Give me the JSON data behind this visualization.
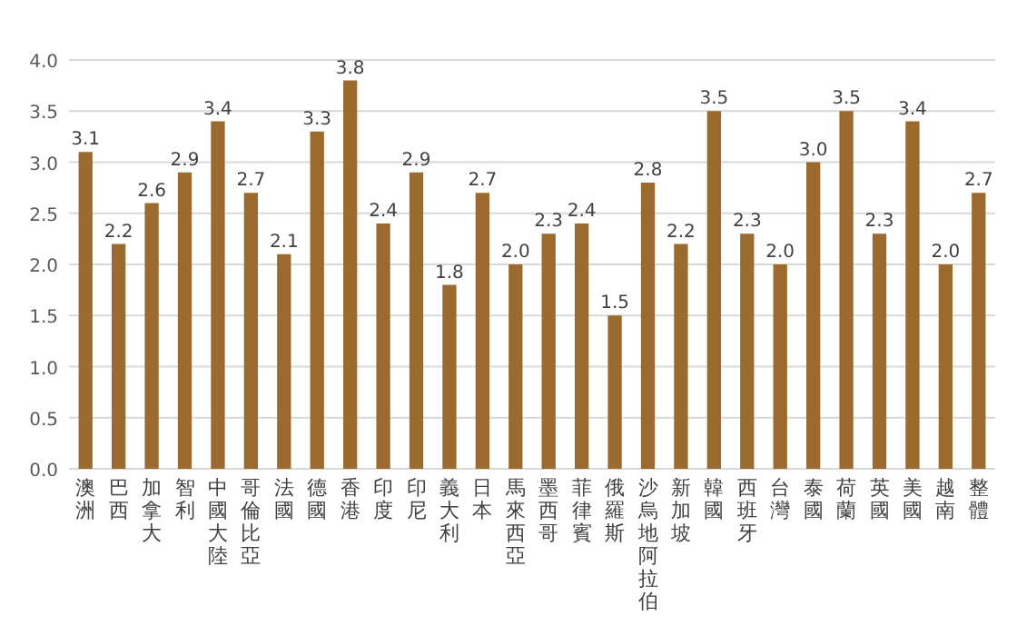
{
  "chart_data": {
    "type": "bar",
    "categories": [
      "澳洲",
      "巴西",
      "加拿大",
      "智利",
      "中國大陸",
      "哥倫比亞",
      "法國",
      "德國",
      "香港",
      "印度",
      "印尼",
      "義大利",
      "日本",
      "馬來西亞",
      "墨西哥",
      "菲律賓",
      "俄羅斯",
      "沙烏地阿拉伯",
      "新加坡",
      "韓國",
      "西班牙",
      "台灣",
      "泰國",
      "荷蘭",
      "英國",
      "美國",
      "越南",
      "整體"
    ],
    "values": [
      3.1,
      2.2,
      2.6,
      2.9,
      3.4,
      2.7,
      2.1,
      3.3,
      3.8,
      2.4,
      2.9,
      1.8,
      2.7,
      2.0,
      2.3,
      2.4,
      1.5,
      2.8,
      2.2,
      3.5,
      2.3,
      2.0,
      3.0,
      3.5,
      2.3,
      3.4,
      2.0,
      2.7
    ],
    "value_labels": [
      "3.1",
      "2.2",
      "2.6",
      "2.9",
      "3.4",
      "2.7",
      "2.1",
      "3.3",
      "3.8",
      "2.4",
      "2.9",
      "1.8",
      "2.7",
      "2.0",
      "2.3",
      "2.4",
      "1.5",
      "2.8",
      "2.2",
      "3.5",
      "2.3",
      "2.0",
      "3.0",
      "3.5",
      "2.3",
      "3.4",
      "2.0",
      "2.7"
    ],
    "color": "#9a6a2e",
    "ylim": [
      0,
      4
    ],
    "yticks": [
      {
        "value": 0,
        "label": "0.0"
      },
      {
        "value": 0.5,
        "label": "0.5"
      },
      {
        "value": 1,
        "label": "1.0"
      },
      {
        "value": 1.5,
        "label": "1.5"
      },
      {
        "value": 2,
        "label": "2.0"
      },
      {
        "value": 2.5,
        "label": "2.5"
      },
      {
        "value": 3,
        "label": "3.0"
      },
      {
        "value": 3.5,
        "label": "3.5"
      },
      {
        "value": 4,
        "label": "4.0"
      }
    ],
    "grid": "y"
  }
}
